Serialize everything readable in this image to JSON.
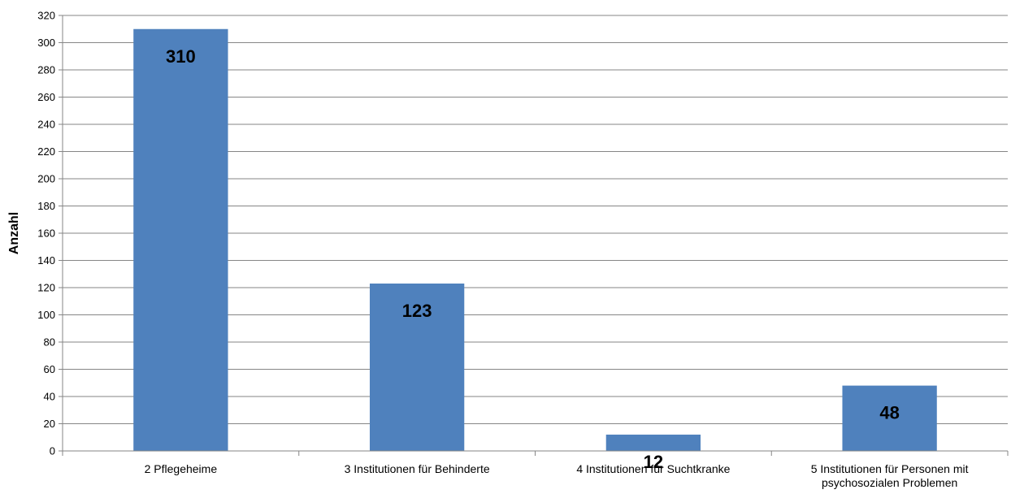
{
  "chart_data": {
    "type": "bar",
    "categories": [
      [
        "2 Pflegeheime"
      ],
      [
        "3 Institutionen für Behinderte"
      ],
      [
        "4 Institutionen für Suchtkranke"
      ],
      [
        "5 Institutionen für Personen mit",
        "psychosozialen Problemen"
      ]
    ],
    "values": [
      310,
      123,
      12,
      48
    ],
    "ylabel": "Anzahl",
    "ylim": [
      0,
      320
    ],
    "ytick_step": 20,
    "grid": true,
    "bar_color": "#4f81bd",
    "grid_color": "#868686"
  }
}
